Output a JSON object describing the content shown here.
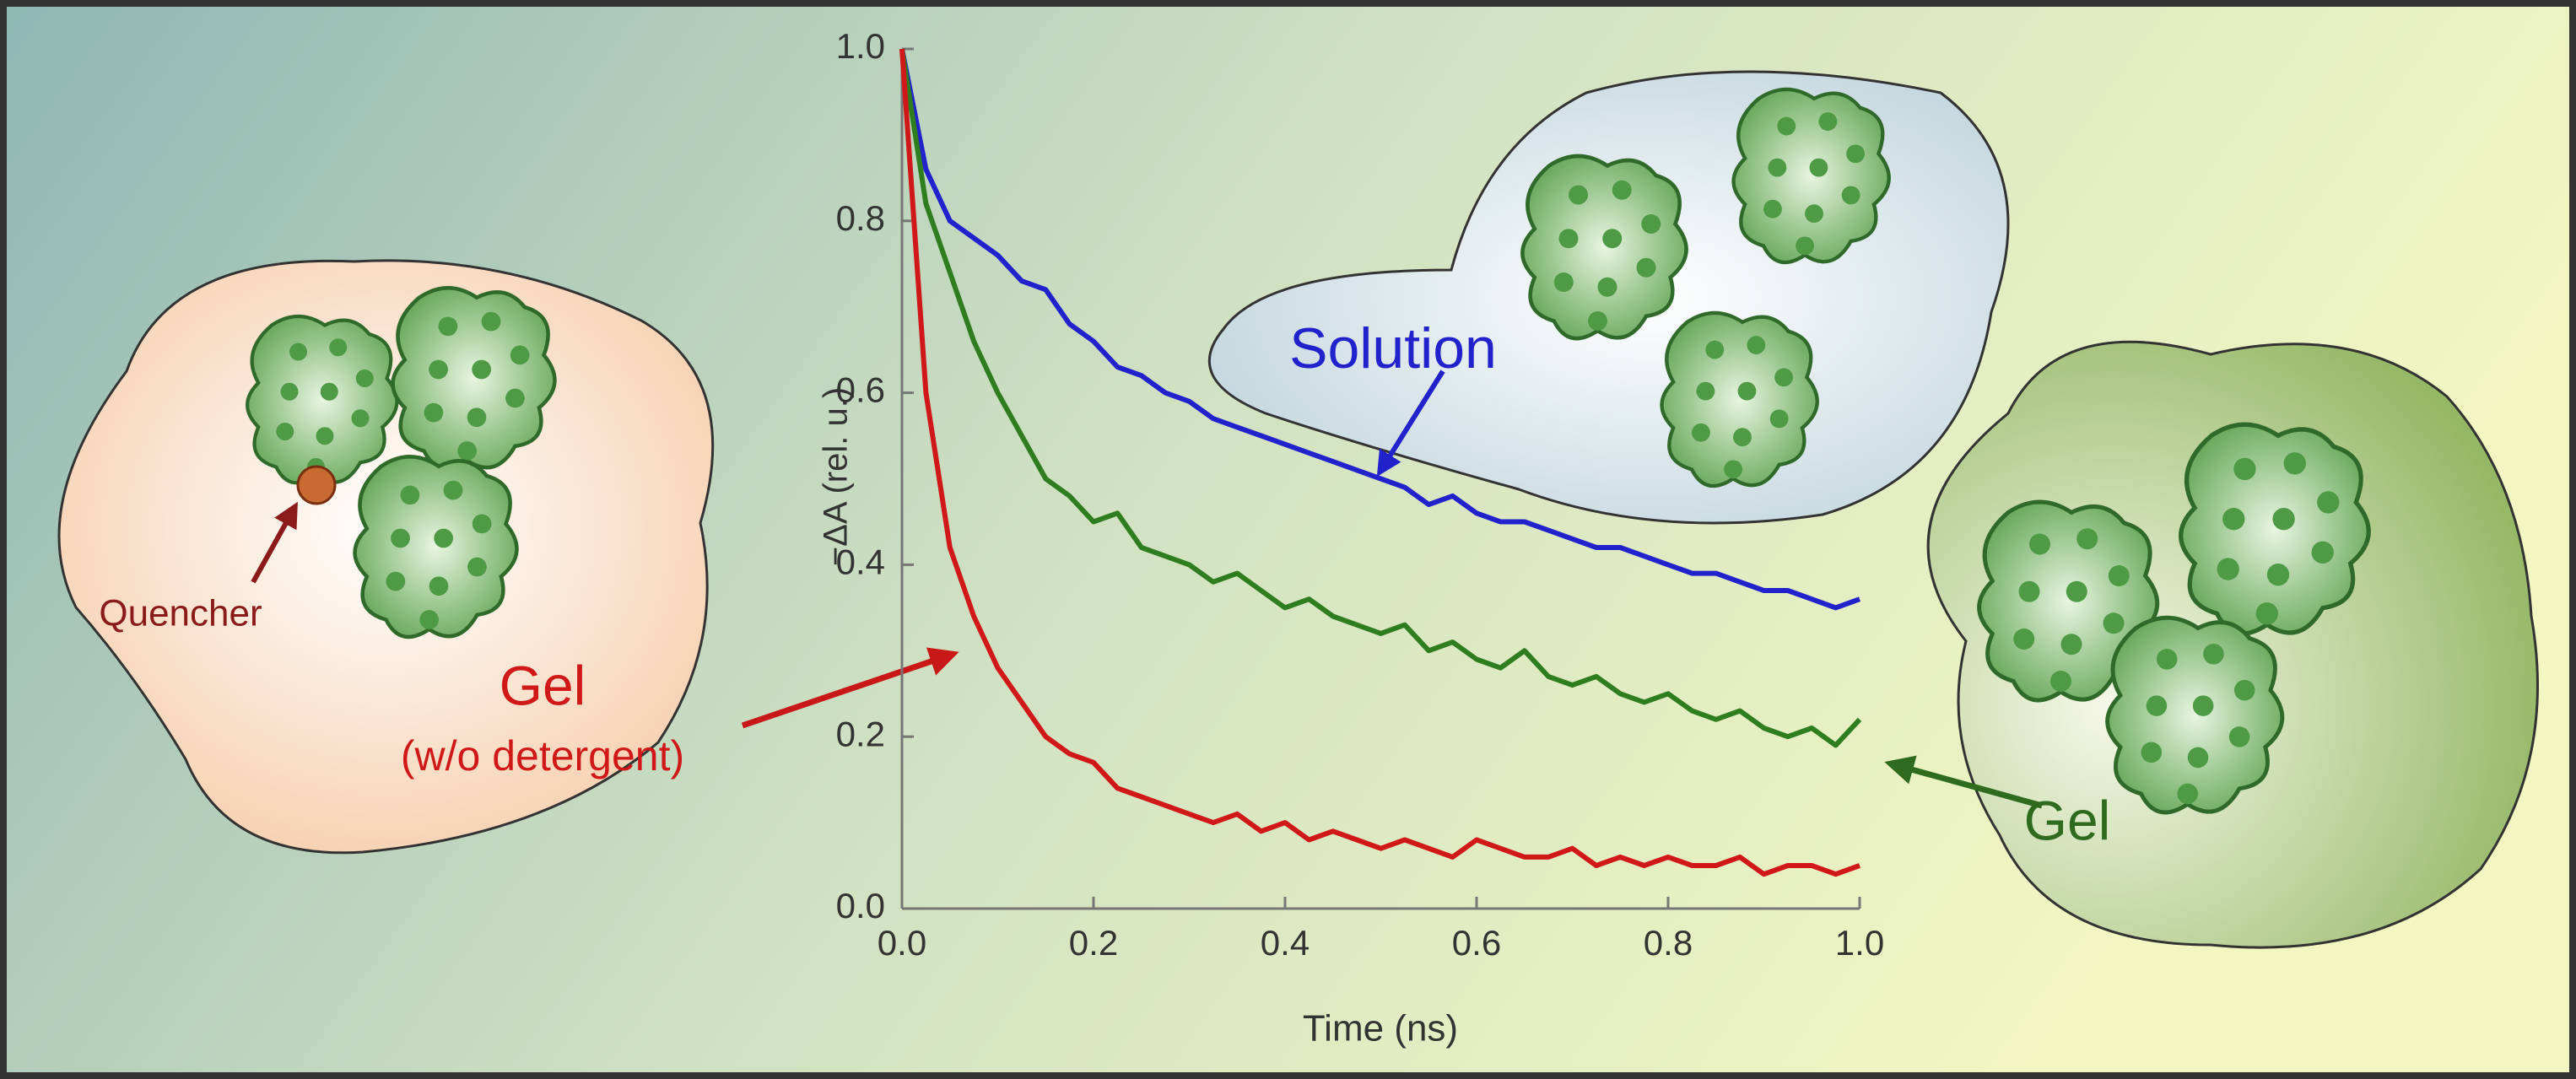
{
  "chart_data": {
    "type": "line",
    "x_label": "Time (ns)",
    "y_label": "−ΔA (rel. u.)",
    "x": [
      0,
      0.025,
      0.05,
      0.075,
      0.1,
      0.125,
      0.15,
      0.175,
      0.2,
      0.225,
      0.25,
      0.275,
      0.3,
      0.325,
      0.35,
      0.375,
      0.4,
      0.425,
      0.45,
      0.475,
      0.5,
      0.525,
      0.55,
      0.575,
      0.6,
      0.625,
      0.65,
      0.675,
      0.7,
      0.725,
      0.75,
      0.775,
      0.8,
      0.825,
      0.85,
      0.875,
      0.9,
      0.925,
      0.95,
      0.975,
      1.0
    ],
    "series": [
      {
        "color": "#2222cc",
        "values": [
          1.0,
          0.86,
          0.8,
          0.78,
          0.76,
          0.73,
          0.72,
          0.68,
          0.66,
          0.63,
          0.62,
          0.6,
          0.59,
          0.57,
          0.56,
          0.55,
          0.54,
          0.53,
          0.52,
          0.51,
          0.5,
          0.49,
          0.47,
          0.48,
          0.46,
          0.45,
          0.45,
          0.44,
          0.43,
          0.42,
          0.42,
          0.41,
          0.4,
          0.39,
          0.39,
          0.38,
          0.37,
          0.37,
          0.36,
          0.35,
          0.36
        ]
      },
      {
        "color": "#2e7d1e",
        "values": [
          1.0,
          0.82,
          0.74,
          0.66,
          0.6,
          0.55,
          0.5,
          0.48,
          0.45,
          0.46,
          0.42,
          0.41,
          0.4,
          0.38,
          0.39,
          0.37,
          0.35,
          0.36,
          0.34,
          0.33,
          0.32,
          0.33,
          0.3,
          0.31,
          0.29,
          0.28,
          0.3,
          0.27,
          0.26,
          0.27,
          0.25,
          0.24,
          0.25,
          0.23,
          0.22,
          0.23,
          0.21,
          0.2,
          0.21,
          0.19,
          0.22
        ]
      },
      {
        "color": "#d01818",
        "values": [
          1.0,
          0.6,
          0.42,
          0.34,
          0.28,
          0.24,
          0.2,
          0.18,
          0.17,
          0.14,
          0.13,
          0.12,
          0.11,
          0.1,
          0.11,
          0.09,
          0.1,
          0.08,
          0.09,
          0.08,
          0.07,
          0.08,
          0.07,
          0.06,
          0.08,
          0.07,
          0.06,
          0.06,
          0.07,
          0.05,
          0.06,
          0.05,
          0.06,
          0.05,
          0.05,
          0.06,
          0.04,
          0.05,
          0.05,
          0.04,
          0.05
        ]
      }
    ],
    "xlim": [
      0,
      1.0
    ],
    "ylim": [
      0,
      1.0
    ],
    "xticks": [
      {
        "value": 0,
        "label": "0.0"
      },
      0.2,
      0.4,
      0.6,
      0.8,
      {
        "value": 1.0,
        "label": "1.0"
      }
    ],
    "yticks": [
      {
        "value": 0,
        "label": "0.0"
      },
      0.2,
      0.4,
      0.6,
      0.8,
      {
        "value": 1.0,
        "label": "1.0"
      }
    ],
    "annotations": [
      {
        "text": "Solution",
        "color": "#2222cc"
      },
      {
        "text": "Gel",
        "color": "#d01818"
      },
      {
        "text": "(w/o detergent)",
        "color": "#d01818"
      },
      {
        "text": "Quencher",
        "color": "#8b1a1a"
      },
      {
        "text": "Gel",
        "color": "#2e6b1e"
      }
    ]
  }
}
